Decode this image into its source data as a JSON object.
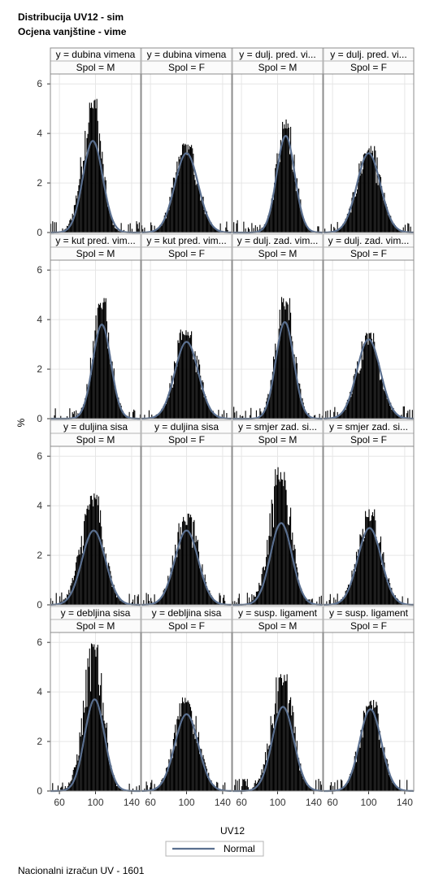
{
  "title": "Distribucija UV12 - sim",
  "subtitle": "Ocjena vanjštine - vime",
  "footnote": "Nacionalni izračun UV - 1601",
  "chart_data": {
    "type": "histogram-panel",
    "xlabel": "UV12",
    "ylabel": "%",
    "xticks": [
      60,
      100,
      140
    ],
    "yticks": [
      0,
      2,
      4,
      6
    ],
    "xlim": [
      50,
      150
    ],
    "ylim": [
      0,
      6.4
    ],
    "legend": {
      "position": "bottom",
      "entries": [
        {
          "name": "Normal",
          "color": "#5a6f8f"
        }
      ]
    },
    "bar_color": "#000000",
    "curve_color": "#5a6f8f",
    "panels": [
      {
        "trait": "y = dubina vimena",
        "sex": "Spol = M",
        "mean": 97,
        "sd": 11,
        "peak_hist": 5.4,
        "peak_normal": 3.7,
        "skew": 0.4
      },
      {
        "trait": "y = dubina vimena",
        "sex": "Spol = F",
        "mean": 100,
        "sd": 13,
        "peak_hist": 3.6,
        "peak_normal": 3.2,
        "skew": 0
      },
      {
        "trait": "y = dulj. pred. vi...",
        "sex": "Spol = M",
        "mean": 109,
        "sd": 10,
        "peak_hist": 4.6,
        "peak_normal": 3.9,
        "skew": 0
      },
      {
        "trait": "y = dulj. pred. vi...",
        "sex": "Spol = F",
        "mean": 100,
        "sd": 13,
        "peak_hist": 3.5,
        "peak_normal": 3.2,
        "skew": 0
      },
      {
        "trait": "y = kut pred. vim...",
        "sex": "Spol = M",
        "mean": 107,
        "sd": 10,
        "peak_hist": 4.9,
        "peak_normal": 3.8,
        "skew": 0
      },
      {
        "trait": "y = kut pred. vim...",
        "sex": "Spol = F",
        "mean": 100,
        "sd": 13,
        "peak_hist": 3.6,
        "peak_normal": 3.1,
        "skew": 0
      },
      {
        "trait": "y = dulj. zad. vim...",
        "sex": "Spol = M",
        "mean": 108,
        "sd": 10,
        "peak_hist": 5.0,
        "peak_normal": 3.9,
        "skew": 0
      },
      {
        "trait": "y = dulj. zad. vim...",
        "sex": "Spol = F",
        "mean": 100,
        "sd": 13,
        "peak_hist": 3.5,
        "peak_normal": 3.2,
        "skew": 0
      },
      {
        "trait": "y = duljina sisa",
        "sex": "Spol = M",
        "mean": 98,
        "sd": 13,
        "peak_hist": 4.5,
        "peak_normal": 3.0,
        "skew": 0.4
      },
      {
        "trait": "y = duljina sisa",
        "sex": "Spol = F",
        "mean": 100,
        "sd": 13,
        "peak_hist": 3.7,
        "peak_normal": 3.0,
        "skew": 0
      },
      {
        "trait": "y = smjer zad. si...",
        "sex": "Spol = M",
        "mean": 104,
        "sd": 12,
        "peak_hist": 5.6,
        "peak_normal": 3.3,
        "skew": 0.3
      },
      {
        "trait": "y = smjer zad. si...",
        "sex": "Spol = F",
        "mean": 101,
        "sd": 13,
        "peak_hist": 3.9,
        "peak_normal": 3.1,
        "skew": 0
      },
      {
        "trait": "y = debljina sisa",
        "sex": "Spol = M",
        "mean": 99,
        "sd": 11,
        "peak_hist": 6.1,
        "peak_normal": 3.7,
        "skew": 0.4
      },
      {
        "trait": "y = debljina sisa",
        "sex": "Spol = F",
        "mean": 100,
        "sd": 13,
        "peak_hist": 3.8,
        "peak_normal": 3.1,
        "skew": 0
      },
      {
        "trait": "y = susp. ligament",
        "sex": "Spol = M",
        "mean": 106,
        "sd": 12,
        "peak_hist": 4.8,
        "peak_normal": 3.4,
        "skew": 0.3
      },
      {
        "trait": "y = susp. ligament",
        "sex": "Spol = F",
        "mean": 102,
        "sd": 12,
        "peak_hist": 3.7,
        "peak_normal": 3.3,
        "skew": 0
      }
    ]
  }
}
